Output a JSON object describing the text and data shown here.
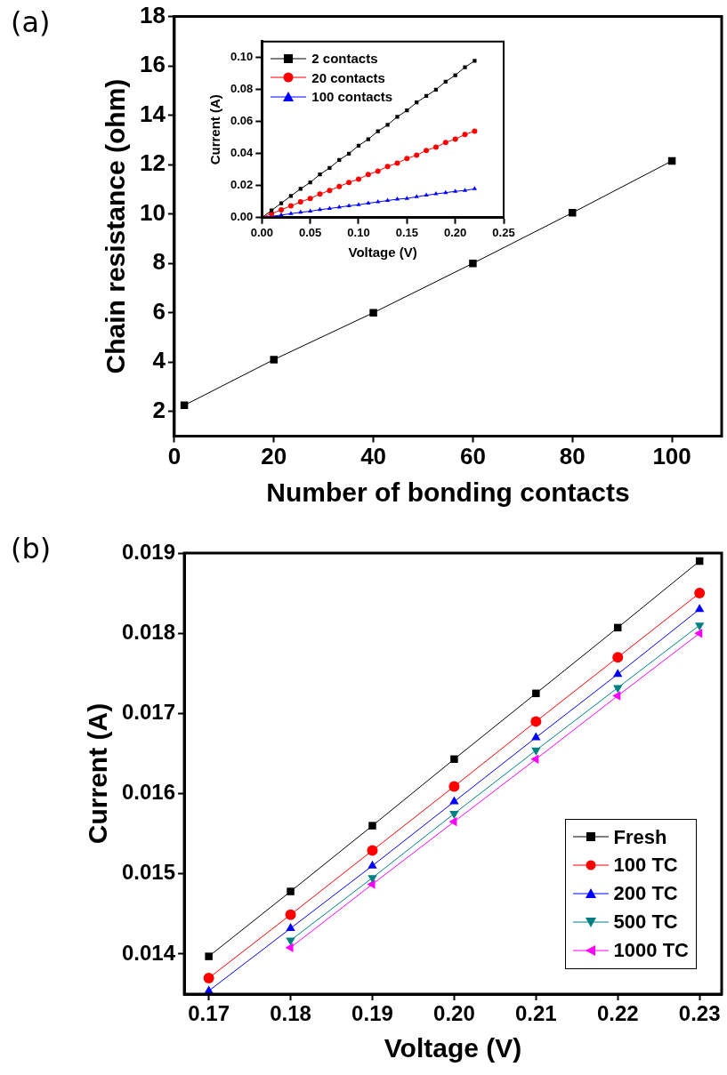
{
  "chart_data": [
    {
      "type": "line",
      "title": "(a)",
      "xlabel": "Number of bonding contacts",
      "ylabel": "Chain resistance (ohm)",
      "x": [
        2,
        20,
        40,
        60,
        80,
        100
      ],
      "series": [
        {
          "color": "#000000",
          "values": [
            2.25,
            4.1,
            6,
            8,
            10.05,
            12.15
          ]
        }
      ],
      "xlim": [
        0,
        110
      ],
      "xticks": [
        0,
        20,
        40,
        60,
        80,
        100
      ],
      "ylim": [
        1,
        18
      ],
      "yticks": [
        2,
        4,
        6,
        8,
        10,
        12,
        14,
        16,
        18
      ],
      "marker": "square",
      "line_style": "solid",
      "grid": false,
      "legend": false
    },
    {
      "type": "line",
      "xlabel": "Voltage (V)",
      "ylabel": "Current (A)",
      "x": [
        0,
        0.01,
        0.02,
        0.03,
        0.04,
        0.05,
        0.06,
        0.07,
        0.08,
        0.09,
        0.1,
        0.11,
        0.12,
        0.13,
        0.14,
        0.15,
        0.16,
        0.17,
        0.18,
        0.19,
        0.2,
        0.21,
        0.22
      ],
      "series": [
        {
          "name": "2 contacts",
          "color": "#000000",
          "marker": "square",
          "values": [
            0,
            0.0045,
            0.009,
            0.0135,
            0.018,
            0.022,
            0.027,
            0.031,
            0.036,
            0.04,
            0.045,
            0.049,
            0.054,
            0.058,
            0.063,
            0.067,
            0.072,
            0.076,
            0.08,
            0.085,
            0.089,
            0.094,
            0.098
          ]
        },
        {
          "name": "20 contacts",
          "color": "#ff0000",
          "marker": "circle",
          "values": [
            0,
            0.0024,
            0.0049,
            0.0073,
            0.0098,
            0.012,
            0.0147,
            0.017,
            0.0195,
            0.022,
            0.024,
            0.027,
            0.029,
            0.032,
            0.034,
            0.037,
            0.039,
            0.042,
            0.044,
            0.047,
            0.049,
            0.052,
            0.054
          ]
        },
        {
          "name": "100 contacts",
          "color": "#0000ff",
          "marker": "triangle",
          "values": [
            0,
            0.0008,
            0.0016,
            0.0025,
            0.0033,
            0.004,
            0.005,
            0.0057,
            0.0065,
            0.0074,
            0.008,
            0.009,
            0.0098,
            0.0107,
            0.0115,
            0.012,
            0.013,
            0.014,
            0.0148,
            0.0156,
            0.0164,
            0.017,
            0.018
          ]
        }
      ],
      "xlim": [
        0,
        0.25
      ],
      "xticks": [
        {
          "value": 0,
          "label": "0.00"
        },
        {
          "value": 0.05,
          "label": "0.05"
        },
        {
          "value": 0.1,
          "label": "0.10"
        },
        {
          "value": 0.15,
          "label": "0.15"
        },
        {
          "value": 0.2,
          "label": "0.20"
        },
        {
          "value": 0.25,
          "label": "0.25"
        }
      ],
      "ylim": [
        0,
        0.11
      ],
      "yticks": [
        {
          "value": 0,
          "label": "0.00"
        },
        {
          "value": 0.02,
          "label": "0.02"
        },
        {
          "value": 0.04,
          "label": "0.04"
        },
        {
          "value": 0.06,
          "label": "0.06"
        },
        {
          "value": 0.08,
          "label": "0.08"
        },
        {
          "value": 0.1,
          "label": "0.10"
        }
      ],
      "line_style": "solid",
      "grid": false,
      "legend": "top left"
    },
    {
      "type": "line",
      "title": "(b)",
      "xlabel": "Voltage (V)",
      "ylabel": "Current (A)",
      "x": [
        0.17,
        0.18,
        0.19,
        0.2,
        0.21,
        0.22,
        0.23
      ],
      "series": [
        {
          "name": "Fresh",
          "color": "#000000",
          "marker": "square",
          "values": [
            0.01397,
            0.01478,
            0.0156,
            0.01643,
            0.01725,
            0.01807,
            0.0189
          ]
        },
        {
          "name": "100 TC",
          "color": "#ff0000",
          "marker": "circle",
          "values": [
            0.0137,
            0.01449,
            0.01529,
            0.01609,
            0.0169,
            0.0177,
            0.0185
          ]
        },
        {
          "name": "200 TC",
          "color": "#0000ff",
          "marker": "triangle",
          "values": [
            0.01354,
            0.01432,
            0.0151,
            0.0159,
            0.0167,
            0.01749,
            0.0183
          ]
        },
        {
          "name": "500 TC",
          "color": "#008080",
          "marker": "triangle-down",
          "values": [
            null,
            0.01417,
            0.01495,
            0.01575,
            0.01654,
            0.01732,
            0.0181
          ]
        },
        {
          "name": "1000 TC",
          "color": "#ff00ff",
          "marker": "triangle-left",
          "values": [
            null,
            0.01408,
            0.01487,
            0.01565,
            0.01643,
            0.01722,
            0.018
          ]
        }
      ],
      "xlim": [
        0.167,
        0.2327
      ],
      "xticks": [
        0.17,
        0.18,
        0.19,
        {
          "value": 0.2,
          "label": "0.20"
        },
        0.21,
        0.22,
        0.23
      ],
      "ylim": [
        0.0135,
        0.019
      ],
      "yticks": [
        0.014,
        0.015,
        0.016,
        0.017,
        0.018,
        0.019
      ],
      "line_style": "solid",
      "grid": false,
      "legend": "bottom right"
    }
  ]
}
